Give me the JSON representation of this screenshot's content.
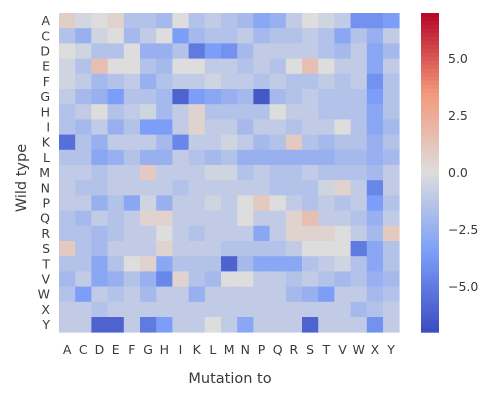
{
  "chart_data": {
    "type": "heatmap",
    "xlabel": "Mutation to",
    "ylabel": "Wild type",
    "x_categories": [
      "A",
      "C",
      "D",
      "E",
      "F",
      "G",
      "H",
      "I",
      "K",
      "L",
      "M",
      "N",
      "P",
      "Q",
      "R",
      "S",
      "T",
      "V",
      "W",
      "X",
      "Y"
    ],
    "y_categories": [
      "A",
      "C",
      "D",
      "E",
      "F",
      "G",
      "H",
      "I",
      "K",
      "L",
      "M",
      "N",
      "P",
      "Q",
      "R",
      "S",
      "T",
      "V",
      "W",
      "X",
      "Y"
    ],
    "colorbar": {
      "min": -7,
      "max": 7,
      "ticks": [
        5.0,
        2.5,
        0.0,
        -2.5,
        -5.0
      ],
      "tick_labels": [
        "5.0",
        "2.5",
        "0.0",
        "−2.5",
        "−5.0"
      ],
      "colormap": "coolwarm"
    },
    "missing_value": 0,
    "values": [
      [
        0.8,
        -0.4,
        0.0,
        0.5,
        -1.5,
        -1.5,
        -2.0,
        0.0,
        -1.5,
        -1.0,
        -1.5,
        -2.0,
        -3.0,
        -2.5,
        -1.0,
        0.0,
        -0.5,
        -1.0,
        -4.0,
        -4.0,
        -3.5
      ],
      [
        -1.5,
        -2.5,
        -0.5,
        0.0,
        -2.0,
        -1.0,
        0.0,
        -3.5,
        -2.0,
        -1.5,
        -1.5,
        -1.0,
        -2.0,
        -1.5,
        -1.5,
        -1.0,
        -1.5,
        -3.0,
        -1.5,
        -2.5,
        -1.0
      ],
      [
        0.0,
        -0.5,
        -1.5,
        -1.5,
        0.0,
        -2.5,
        -2.5,
        -1.5,
        -5.0,
        -3.5,
        -4.0,
        -2.0,
        -1.0,
        -1.0,
        -1.0,
        -1.0,
        -1.5,
        -2.0,
        -1.0,
        -3.0,
        -2.0
      ],
      [
        -0.5,
        -1.5,
        1.5,
        0.0,
        0.0,
        -1.5,
        -2.0,
        0.0,
        0.0,
        -1.0,
        -1.0,
        -1.5,
        -1.0,
        -1.5,
        0.0,
        1.5,
        0.0,
        -1.0,
        -1.0,
        -3.0,
        -1.0
      ],
      [
        -0.5,
        -1.0,
        -2.0,
        -1.5,
        -1.0,
        -2.5,
        -1.5,
        -1.0,
        -1.0,
        -0.5,
        -1.0,
        -1.0,
        -1.5,
        -1.0,
        -1.5,
        -1.5,
        -1.0,
        -1.5,
        -1.0,
        -4.0,
        -1.5
      ],
      [
        -1.0,
        -2.0,
        -2.5,
        -3.5,
        -1.5,
        -1.5,
        -2.0,
        -6.0,
        -3.5,
        -3.0,
        -2.5,
        -2.0,
        -6.5,
        -2.0,
        -1.5,
        -1.0,
        -1.5,
        -1.5,
        -1.5,
        -3.5,
        -1.5
      ],
      [
        -1.5,
        -1.0,
        0.0,
        -1.5,
        -1.0,
        -0.5,
        -2.0,
        -1.0,
        0.5,
        -1.5,
        -1.5,
        -1.5,
        -1.5,
        0.0,
        -1.0,
        -1.0,
        -1.5,
        -1.5,
        -1.5,
        -3.0,
        -1.5
      ],
      [
        -1.5,
        -2.0,
        -1.0,
        -2.5,
        -1.5,
        -3.5,
        -3.5,
        -1.0,
        0.5,
        -1.0,
        -1.0,
        -2.0,
        -1.0,
        -1.0,
        -1.5,
        -1.0,
        -1.0,
        0.0,
        -1.5,
        -3.0,
        -2.0
      ],
      [
        -5.5,
        -1.5,
        -2.5,
        -1.0,
        -1.0,
        -1.0,
        -2.0,
        -4.5,
        -1.0,
        -1.0,
        -0.5,
        -1.0,
        -2.0,
        -1.5,
        1.0,
        -1.5,
        -2.0,
        -1.5,
        -1.5,
        -2.5,
        -1.5
      ],
      [
        -1.5,
        -1.5,
        -3.0,
        -2.5,
        -1.5,
        -2.5,
        -2.5,
        -1.0,
        -1.5,
        -2.0,
        -1.5,
        -2.5,
        -2.5,
        -2.5,
        -2.5,
        -2.5,
        -2.5,
        -2.0,
        -2.0,
        -2.5,
        -2.0
      ],
      [
        -1.0,
        -1.0,
        -1.5,
        -1.0,
        -1.0,
        1.0,
        -1.0,
        -1.0,
        -1.0,
        -0.5,
        -0.5,
        -1.5,
        -1.0,
        -1.5,
        -1.5,
        -1.0,
        -1.5,
        -1.5,
        -1.5,
        -2.0,
        -1.0
      ],
      [
        -1.0,
        -1.5,
        -1.5,
        -1.0,
        -1.0,
        -1.0,
        -1.0,
        -1.5,
        -1.0,
        -1.0,
        -1.0,
        -1.0,
        -1.0,
        -1.5,
        -1.5,
        -1.5,
        -0.5,
        0.5,
        -1.0,
        -4.5,
        -1.0
      ],
      [
        -1.0,
        -1.0,
        -2.5,
        -1.5,
        -3.0,
        -0.5,
        -2.5,
        -1.0,
        -1.0,
        -0.5,
        -1.0,
        0.0,
        1.0,
        0.0,
        -1.0,
        -1.5,
        -1.0,
        -1.5,
        -1.0,
        -3.5,
        -1.5
      ],
      [
        -1.5,
        -2.0,
        -1.0,
        -1.5,
        -1.0,
        0.5,
        0.5,
        -1.0,
        -1.0,
        -1.0,
        -1.0,
        0.0,
        -1.0,
        -1.0,
        0.5,
        1.5,
        -1.0,
        -1.0,
        -1.5,
        -2.5,
        -1.0
      ],
      [
        -1.5,
        -1.5,
        -2.0,
        -1.5,
        -1.0,
        -1.0,
        0.0,
        -1.0,
        -1.5,
        -1.0,
        -1.0,
        -1.0,
        -3.0,
        -1.0,
        0.5,
        0.5,
        0.5,
        0.0,
        -1.0,
        -2.0,
        1.0
      ],
      [
        1.0,
        -1.5,
        -2.0,
        -1.0,
        -1.0,
        -1.0,
        0.5,
        -1.0,
        -1.0,
        -1.0,
        -1.5,
        -1.5,
        -1.5,
        -1.5,
        -1.0,
        0.0,
        0.0,
        0.0,
        -5.0,
        -3.0,
        -1.5
      ],
      [
        -1.5,
        -1.5,
        -3.0,
        -1.5,
        0.0,
        0.5,
        -3.0,
        -1.5,
        -1.5,
        -1.5,
        -6.0,
        -2.0,
        -3.0,
        -3.0,
        -3.0,
        -1.5,
        -1.0,
        -0.5,
        -1.5,
        -3.0,
        -1.5
      ],
      [
        -2.0,
        -1.0,
        -3.0,
        -2.5,
        -1.5,
        -2.5,
        -4.5,
        0.5,
        -1.5,
        -2.0,
        0.0,
        0.0,
        -1.0,
        -1.0,
        -1.5,
        -1.0,
        -1.5,
        -2.0,
        -1.5,
        -2.5,
        -2.0
      ],
      [
        -1.5,
        -3.5,
        -1.0,
        -1.5,
        -1.0,
        -2.0,
        -1.0,
        -1.0,
        -2.5,
        -1.0,
        -1.0,
        -1.0,
        -1.0,
        -1.0,
        -2.0,
        -2.5,
        -3.5,
        -1.0,
        -1.0,
        -2.0,
        -1.5
      ],
      [
        -1.0,
        -1.0,
        -1.5,
        -1.0,
        -1.0,
        -1.0,
        -1.0,
        -1.0,
        -1.0,
        -1.0,
        -1.0,
        -1.0,
        -1.0,
        -1.0,
        -1.0,
        -1.0,
        -1.0,
        -1.0,
        -2.0,
        -1.5,
        -1.0
      ],
      [
        -1.0,
        -1.0,
        -6.0,
        -6.0,
        -1.0,
        -5.0,
        -3.5,
        -1.0,
        -1.0,
        0.0,
        -1.0,
        -3.0,
        -1.0,
        -1.0,
        -1.0,
        -6.0,
        -1.0,
        -1.0,
        -1.0,
        -4.0,
        -1.0
      ]
    ]
  }
}
